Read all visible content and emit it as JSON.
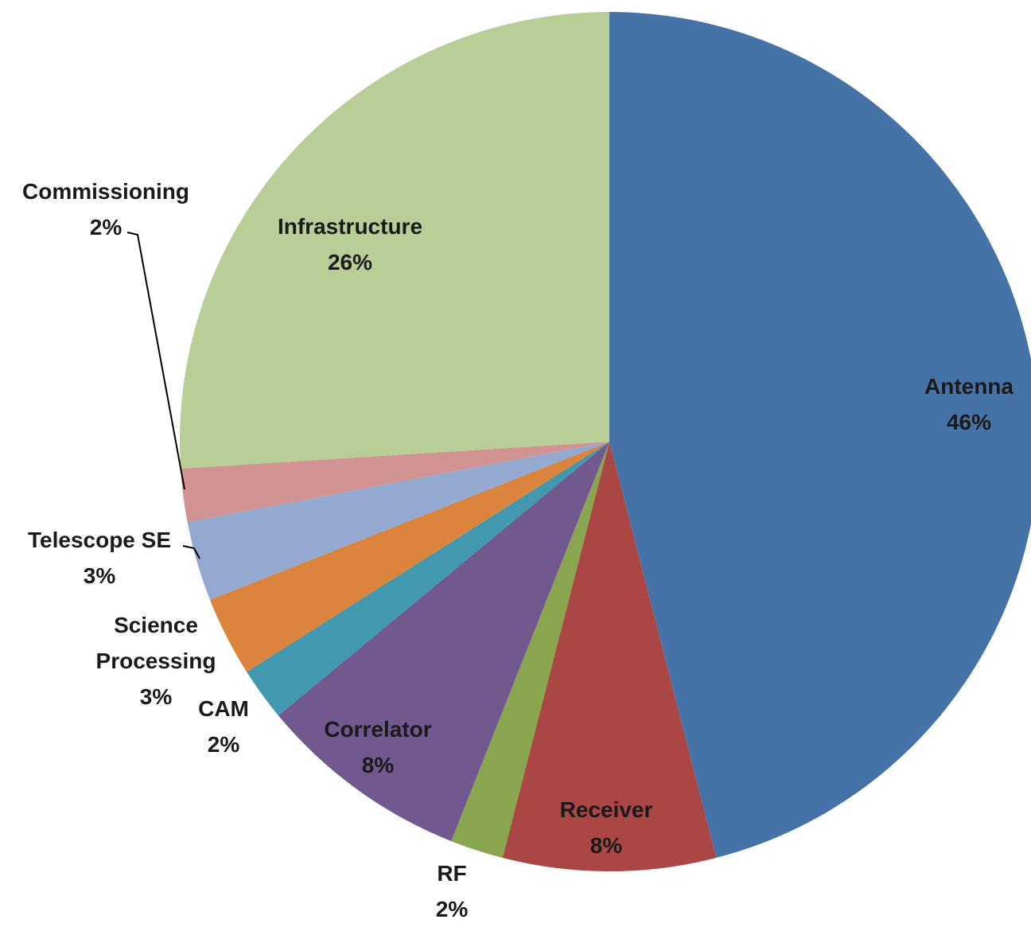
{
  "chart_data": {
    "type": "pie",
    "categories": [
      "Antenna",
      "Receiver",
      "RF",
      "Correlator",
      "CAM",
      "Science Processing",
      "Telescope SE",
      "Commissioning",
      "Infrastructure"
    ],
    "values": [
      46,
      8,
      2,
      8,
      2,
      3,
      3,
      2,
      26
    ],
    "value_labels": [
      "46%",
      "8%",
      "2%",
      "8%",
      "2%",
      "3%",
      "3%",
      "2%",
      "26%"
    ],
    "colors": [
      "#4572a7",
      "#aa4643",
      "#89a54e",
      "#71588f",
      "#4198af",
      "#db843d",
      "#93a9cf",
      "#d19392",
      "#b9cd96"
    ]
  }
}
